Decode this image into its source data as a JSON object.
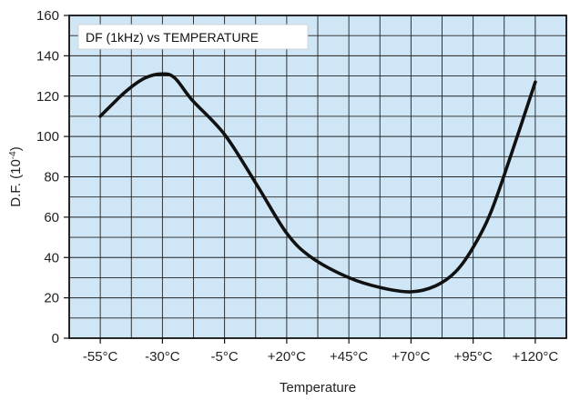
{
  "chart_data": {
    "type": "line",
    "title": "DF (1kHz) vs TEMPERATURE",
    "xlabel": "Temperature",
    "ylabel": "D.F. (10",
    "ylabel_sup": "-4",
    "ylabel_close": ")",
    "xlim": [
      -67.5,
      132.5
    ],
    "ylim": [
      0,
      160
    ],
    "x_ticks": [
      -55,
      -30,
      -5,
      20,
      45,
      70,
      95,
      120
    ],
    "x_tick_labels": [
      "-55°C",
      "-30°C",
      "-5°C",
      "+20°C",
      "+45°C",
      "+70°C",
      "+95°C",
      "+120°C"
    ],
    "y_ticks": [
      0,
      20,
      40,
      60,
      80,
      100,
      120,
      140,
      160
    ],
    "y_tick_labels": [
      "0",
      "20",
      "40",
      "60",
      "80",
      "100",
      "120",
      "140",
      "160"
    ],
    "grid": true,
    "legend_position": "top-left",
    "series": [
      {
        "x": [
          -55,
          -45,
          -37,
          -30,
          -25,
          -18,
          -5,
          8,
          20,
          30,
          45,
          58,
          70,
          80,
          88,
          95,
          102,
          110,
          120
        ],
        "values": [
          110,
          122,
          129,
          131,
          129,
          118,
          101,
          76,
          52,
          40,
          30,
          25,
          23,
          26,
          33,
          45,
          62,
          90,
          127
        ]
      }
    ],
    "colors": {
      "plot_background": "#cfe6f6",
      "grid": "#222222",
      "line": "#111111",
      "legend_background": "#ffffff"
    }
  }
}
